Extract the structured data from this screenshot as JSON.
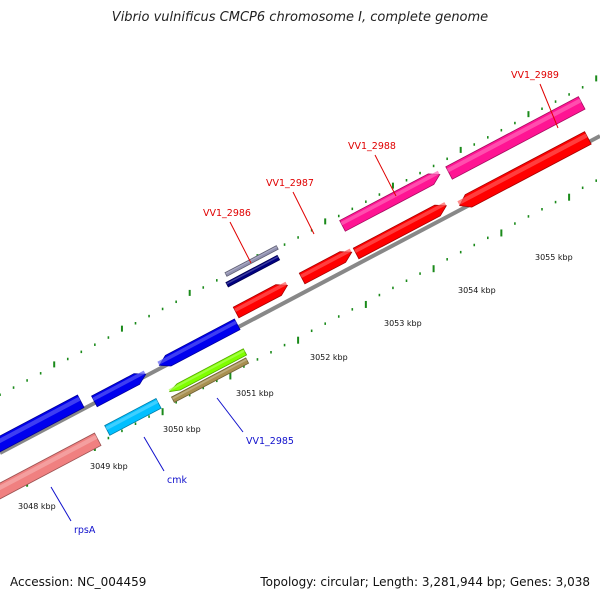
{
  "title": "Vibrio vulnificus CMCP6 chromosome I, complete genome",
  "footer": {
    "accession": "Accession: NC_004459",
    "topology": "Topology: circular; Length: 3,281,944 bp; Genes: 3,038"
  },
  "colors": {
    "backbone": "#888888",
    "tick": "#1a8a1a",
    "upper_label": "#e00000",
    "lower_label": "#1010cc"
  },
  "scale_labels": [
    {
      "text": "3048 kbp"
    },
    {
      "text": "3049 kbp"
    },
    {
      "text": "3050 kbp"
    },
    {
      "text": "3051 kbp"
    },
    {
      "text": "3052 kbp"
    },
    {
      "text": "3053 kbp"
    },
    {
      "text": "3054 kbp"
    },
    {
      "text": "3055 kbp"
    }
  ],
  "gene_labels": [
    {
      "text": "VV1_2989",
      "color": "#e00000"
    },
    {
      "text": "VV1_2988",
      "color": "#e00000"
    },
    {
      "text": "VV1_2987",
      "color": "#e00000"
    },
    {
      "text": "VV1_2986",
      "color": "#e00000"
    },
    {
      "text": "VV1_2985",
      "color": "#1010cc"
    },
    {
      "text": "cmk",
      "color": "#1010cc"
    },
    {
      "text": "rpsA",
      "color": "#1010cc"
    }
  ],
  "features": [
    {
      "kind": "gene",
      "color": "#f08080"
    },
    {
      "kind": "gene",
      "color": "#0000ee"
    },
    {
      "kind": "gene",
      "color": "#0000ee"
    },
    {
      "kind": "gene",
      "color": "#0000ee"
    },
    {
      "kind": "gene",
      "color": "#00bfff"
    },
    {
      "kind": "gene",
      "color": "#7fff00"
    },
    {
      "kind": "gene",
      "color": "#a89050"
    },
    {
      "kind": "gene",
      "color": "#ff0000"
    },
    {
      "kind": "gene",
      "color": "#ff0000"
    },
    {
      "kind": "gene",
      "color": "#ff0000"
    },
    {
      "kind": "gene",
      "color": "#ff0000"
    },
    {
      "kind": "gene",
      "color": "#ff1493"
    },
    {
      "kind": "gene",
      "color": "#ff1493"
    },
    {
      "kind": "gene",
      "color": "#000080"
    },
    {
      "kind": "gene",
      "color": "#9090b0"
    }
  ]
}
